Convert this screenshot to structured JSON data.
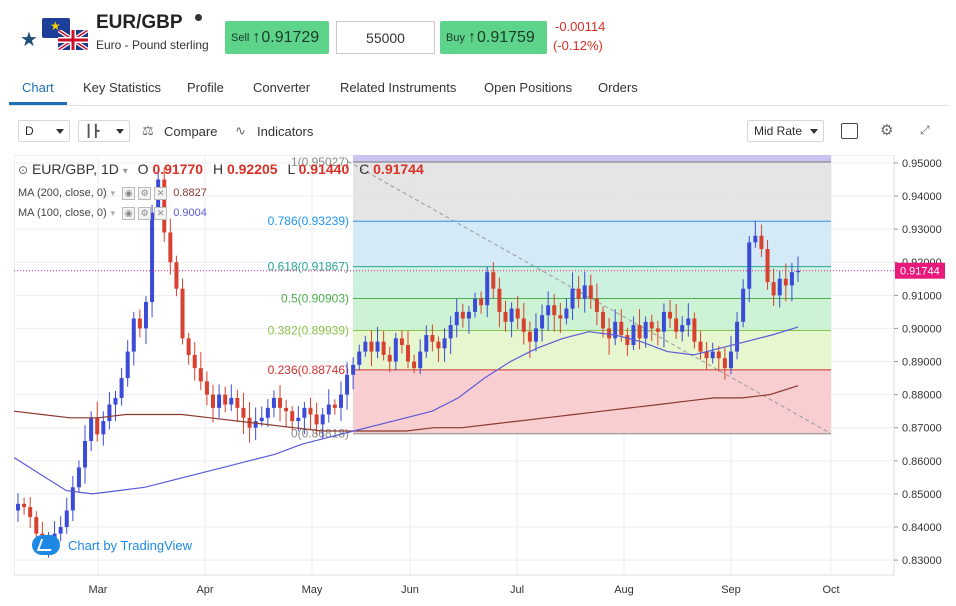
{
  "instrument": {
    "symbol": "EUR/GBP",
    "name": "Euro - Pound sterling",
    "sell_label": "Sell",
    "sell_price": "0.91729",
    "amount": "55000",
    "buy_label": "Buy",
    "buy_price": "0.91759",
    "change_abs": "-0.00114",
    "change_pct": "(-0.12%)"
  },
  "tabs": [
    "Chart",
    "Key Statistics",
    "Profile",
    "Converter",
    "Related Instruments",
    "Open Positions",
    "Orders"
  ],
  "toolbar": {
    "interval": "D",
    "compare_label": "Compare",
    "indicators_label": "Indicators",
    "rate_type": "Mid Rate"
  },
  "legend": {
    "title": "EUR/GBP, 1D",
    "o_label": "O",
    "o_value": "0.91770",
    "h_label": "H",
    "h_value": "0.92205",
    "l_label": "L",
    "l_value": "0.91440",
    "c_label": "C",
    "c_value": "0.91744",
    "ma200_label": "MA (200, close, 0)",
    "ma200_value": "0.8827",
    "ma100_label": "MA (100, close, 0)",
    "ma100_value": "0.9004"
  },
  "watermark": "Chart by TradingView",
  "colors": {
    "up": "#3b4bd8",
    "down": "#d8412f",
    "ma100": "#5b5bd6",
    "ma200": "#8b3a2f",
    "accent": "#1e6fb8",
    "buy_sell": "#5ed48b",
    "price_tag": "#e8197a"
  },
  "chart_data": {
    "type": "candlestick",
    "y_ticks": [
      "0.95000",
      "0.94000",
      "0.93000",
      "0.92000",
      "0.91000",
      "0.90000",
      "0.89000",
      "0.88000",
      "0.87000",
      "0.86000",
      "0.85000",
      "0.84000",
      "0.83000"
    ],
    "y_range": [
      0.8255,
      0.9524
    ],
    "x_labels": [
      "Mar",
      "Apr",
      "May",
      "Jun",
      "Jul",
      "Aug",
      "Sep",
      "Oct"
    ],
    "last_price": "0.91744",
    "fib_levels": [
      {
        "ratio": "1",
        "value": "0.95027"
      },
      {
        "ratio": "0.786",
        "value": "0.93239"
      },
      {
        "ratio": "0.618",
        "value": "0.91867"
      },
      {
        "ratio": "0.5",
        "value": "0.90903"
      },
      {
        "ratio": "0.382",
        "value": "0.89939"
      },
      {
        "ratio": "0.236",
        "value": "0.88746"
      },
      {
        "ratio": "0",
        "value": "0.86818"
      }
    ],
    "close_series": [
      0.847,
      0.846,
      0.843,
      0.838,
      0.835,
      0.836,
      0.838,
      0.84,
      0.845,
      0.852,
      0.858,
      0.866,
      0.873,
      0.868,
      0.872,
      0.877,
      0.879,
      0.885,
      0.893,
      0.903,
      0.9,
      0.908,
      0.935,
      0.945,
      0.929,
      0.92,
      0.912,
      0.897,
      0.892,
      0.888,
      0.884,
      0.88,
      0.876,
      0.88,
      0.877,
      0.879,
      0.876,
      0.873,
      0.87,
      0.872,
      0.873,
      0.876,
      0.879,
      0.876,
      0.875,
      0.872,
      0.873,
      0.876,
      0.874,
      0.871,
      0.874,
      0.877,
      0.876,
      0.88,
      0.886,
      0.889,
      0.893,
      0.896,
      0.893,
      0.896,
      0.892,
      0.89,
      0.897,
      0.895,
      0.89,
      0.888,
      0.893,
      0.898,
      0.896,
      0.894,
      0.897,
      0.901,
      0.905,
      0.903,
      0.905,
      0.909,
      0.907,
      0.917,
      0.912,
      0.905,
      0.902,
      0.906,
      0.903,
      0.899,
      0.896,
      0.9,
      0.904,
      0.907,
      0.904,
      0.903,
      0.906,
      0.912,
      0.909,
      0.913,
      0.909,
      0.905,
      0.9,
      0.897,
      0.902,
      0.898,
      0.895,
      0.901,
      0.897,
      0.902,
      0.9,
      0.899,
      0.905,
      0.903,
      0.899,
      0.901,
      0.903,
      0.896,
      0.893,
      0.891,
      0.893,
      0.891,
      0.888,
      0.893,
      0.902,
      0.912,
      0.926,
      0.928,
      0.924,
      0.914,
      0.91,
      0.915,
      0.913,
      0.917,
      0.91744
    ],
    "ma100_series": [
      0.861,
      0.856,
      0.851,
      0.85,
      0.851,
      0.852,
      0.854,
      0.856,
      0.858,
      0.86,
      0.862,
      0.865,
      0.867,
      0.869,
      0.871,
      0.873,
      0.875,
      0.879,
      0.885,
      0.89,
      0.894,
      0.897,
      0.899,
      0.898,
      0.896,
      0.893,
      0.892,
      0.894,
      0.896,
      0.898,
      0.9004
    ],
    "ma200_series": [
      0.875,
      0.874,
      0.873,
      0.873,
      0.874,
      0.874,
      0.874,
      0.873,
      0.872,
      0.871,
      0.87,
      0.869,
      0.869,
      0.869,
      0.869,
      0.87,
      0.87,
      0.871,
      0.872,
      0.873,
      0.874,
      0.875,
      0.876,
      0.877,
      0.878,
      0.879,
      0.879,
      0.88,
      0.8827
    ]
  }
}
